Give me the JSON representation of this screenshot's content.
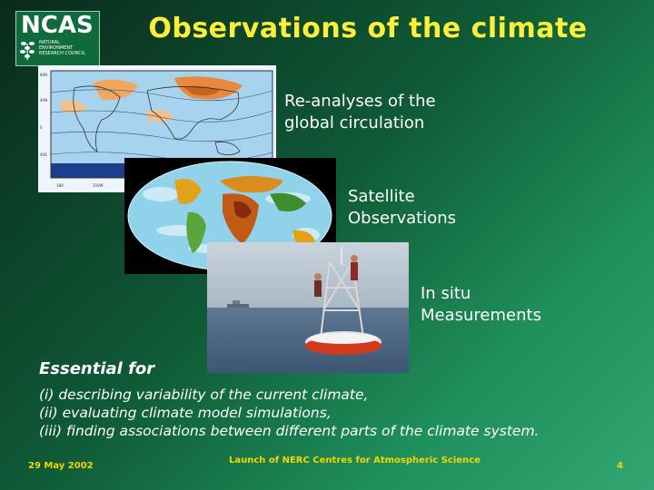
{
  "slide": {
    "title": "Observations of the climate",
    "logo": {
      "text": "NCAS",
      "subtext": [
        "NATURAL",
        "ENVIRONMENT",
        "RESEARCH COUNCIL"
      ]
    },
    "panels": [
      {
        "label_line1": "Re-analyses of the",
        "label_line2": "global circulation",
        "image": "reanalysis-map"
      },
      {
        "label_line1": "Satellite",
        "label_line2": "Observations",
        "image": "satellite-globe"
      },
      {
        "label_line1": "In situ",
        "label_line2": "Measurements",
        "image": "ocean-buoy-photo"
      }
    ],
    "essential_heading": "Essential for",
    "bullets": [
      "(i) describing variability of the current climate,",
      "(ii) evaluating climate model simulations,",
      "(iii) finding associations between different parts of the climate system."
    ],
    "footer": {
      "date": "29 May 2002",
      "center": "Launch of NERC Centres for Atmospheric Science",
      "page": "4"
    }
  },
  "colors": {
    "title": "#ffef3a",
    "footer": "#f2d600",
    "background_dark": "#0a2a1c",
    "background_light": "#33a673"
  }
}
